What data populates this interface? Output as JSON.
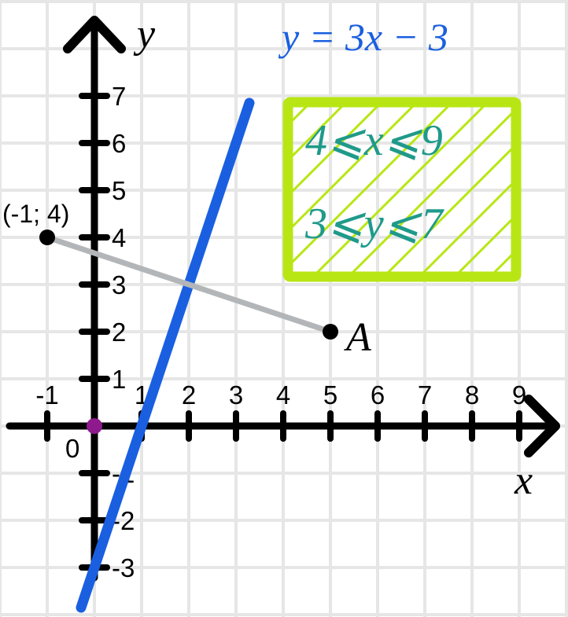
{
  "colors": {
    "grid": "#e6e6e6",
    "axis": "#000000",
    "line": "#1a5fe0",
    "segment": "#b3b6b9",
    "box": "#b8e614",
    "inequality_text": "#1f9a8a",
    "origin_point": "#8e1a8e"
  },
  "axes": {
    "x_name": "x",
    "y_name": "y",
    "origin_label": "0",
    "x_ticks": [
      {
        "value": -1,
        "label": "-1"
      },
      {
        "value": 1,
        "label": "1"
      },
      {
        "value": 2,
        "label": "2"
      },
      {
        "value": 3,
        "label": "3"
      },
      {
        "value": 4,
        "label": "4"
      },
      {
        "value": 5,
        "label": "5"
      },
      {
        "value": 6,
        "label": "6"
      },
      {
        "value": 7,
        "label": "7"
      },
      {
        "value": 8,
        "label": "8"
      },
      {
        "value": 9,
        "label": "9"
      }
    ],
    "y_ticks": [
      {
        "value": 7,
        "label": "7"
      },
      {
        "value": 6,
        "label": "6"
      },
      {
        "value": 5,
        "label": "5"
      },
      {
        "value": 4,
        "label": "4"
      },
      {
        "value": 3,
        "label": "3"
      },
      {
        "value": 2,
        "label": "2"
      },
      {
        "value": 1,
        "label": "1"
      },
      {
        "value": -1,
        "label": "-1"
      },
      {
        "value": -2,
        "label": "-2"
      },
      {
        "value": -3,
        "label": "-3"
      }
    ]
  },
  "line": {
    "label": "y = 3x − 3",
    "slope": 3,
    "intercept": -3
  },
  "points": {
    "known": {
      "x": -1,
      "y": 4,
      "label": "(-1; 4)"
    },
    "a": {
      "x": 5,
      "y": 2,
      "label": "A"
    }
  },
  "region": {
    "x_condition": "4⩽x⩽9",
    "y_condition": "3⩽y⩽7"
  }
}
